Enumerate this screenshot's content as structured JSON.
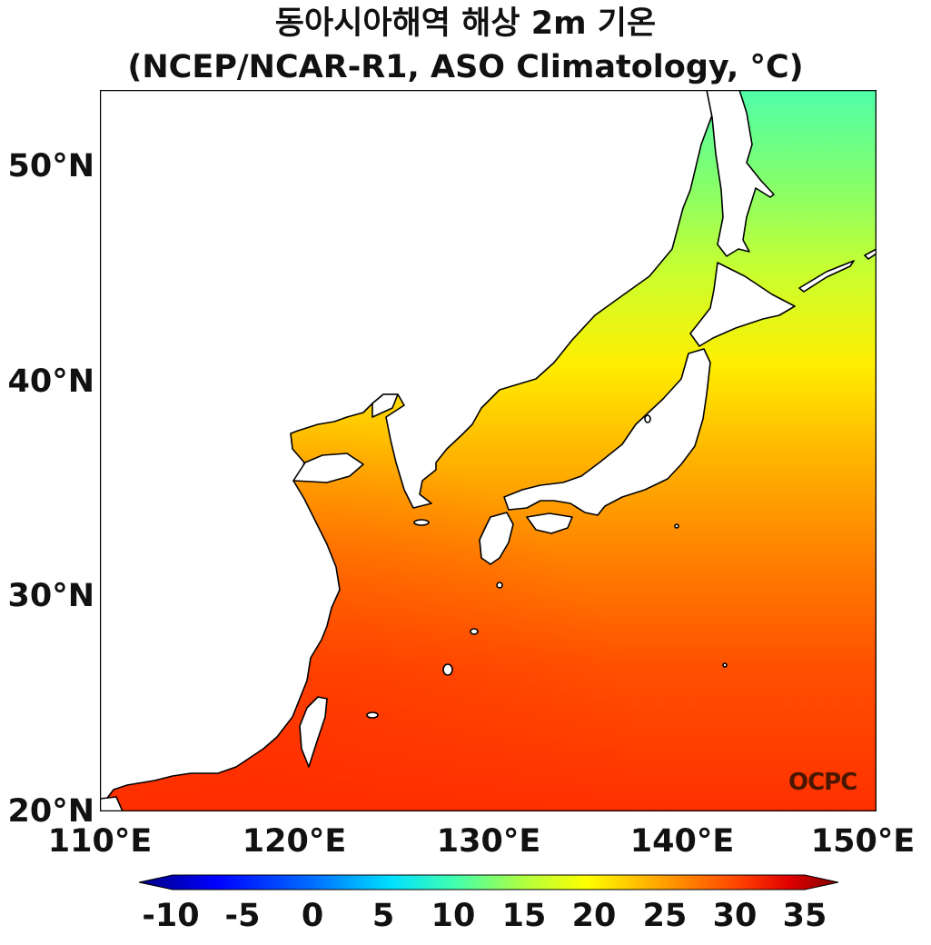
{
  "title_line1": "동아시아해역 해상 2m 기온",
  "title_line2": "(NCEP/NCAR-R1, ASO Climatology, °C)",
  "watermark": "OCPC",
  "lat_labels": [
    "50°N",
    "40°N",
    "30°N",
    "20°N"
  ],
  "lon_labels": [
    "110°E",
    "120°E",
    "130°E",
    "140°E",
    "150°E"
  ],
  "map": {
    "extent_lon": [
      110,
      150
    ],
    "extent_lat": [
      20,
      53.5
    ],
    "land_color": "#ffffff",
    "coast_color": "#000000"
  },
  "colorbar": {
    "labels": [
      "-10",
      "-5",
      "0",
      "5",
      "10",
      "15",
      "20",
      "25",
      "30",
      "35"
    ],
    "min": -10,
    "max": 35,
    "extend": "both",
    "colormap": "jet",
    "colors": [
      "#00007f",
      "#0000ff",
      "#0080ff",
      "#00e0ff",
      "#40ffb0",
      "#b0ff40",
      "#ffff00",
      "#ffa000",
      "#ff4000",
      "#e00000",
      "#7f0000"
    ]
  }
}
